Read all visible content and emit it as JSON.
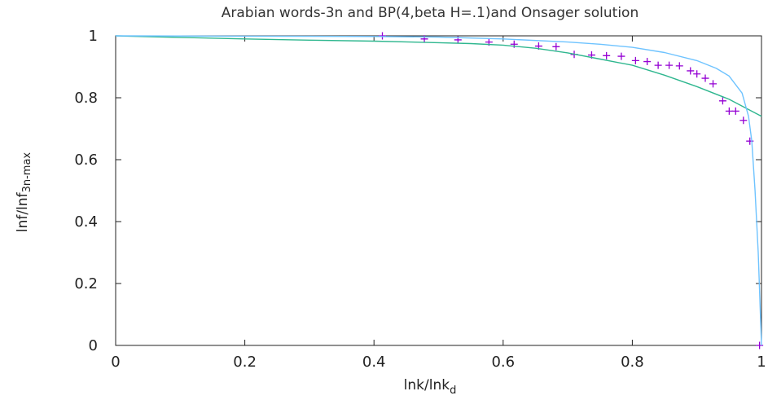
{
  "chart_data": {
    "type": "line",
    "title": "Arabian words-3n and BP(4,beta H=.1)and Onsager solution",
    "xlabel": {
      "main": "lnk/lnk",
      "sub": "d"
    },
    "ylabel": {
      "main": "lnf/lnf",
      "sub": "3n-max"
    },
    "xlim": [
      0,
      1
    ],
    "ylim": [
      0,
      1
    ],
    "xticks": [
      "0",
      "0.2",
      "0.4",
      "0.6",
      "0.8",
      "1"
    ],
    "yticks": [
      "0",
      "0.2",
      "0.4",
      "0.6",
      "0.8",
      "1"
    ],
    "grid": false,
    "legend": "none",
    "series": [
      {
        "kind": "markers",
        "marker": "plus",
        "color": "#9400d3",
        "points": [
          [
            0.413,
            1.0
          ],
          [
            0.478,
            0.99
          ],
          [
            0.53,
            0.987
          ],
          [
            0.578,
            0.98
          ],
          [
            0.617,
            0.973
          ],
          [
            0.655,
            0.967
          ],
          [
            0.682,
            0.965
          ],
          [
            0.71,
            0.94
          ],
          [
            0.737,
            0.938
          ],
          [
            0.76,
            0.936
          ],
          [
            0.783,
            0.934
          ],
          [
            0.805,
            0.92
          ],
          [
            0.823,
            0.917
          ],
          [
            0.84,
            0.905
          ],
          [
            0.857,
            0.905
          ],
          [
            0.873,
            0.903
          ],
          [
            0.89,
            0.887
          ],
          [
            0.9,
            0.877
          ],
          [
            0.913,
            0.863
          ],
          [
            0.925,
            0.845
          ],
          [
            0.94,
            0.79
          ],
          [
            0.95,
            0.757
          ],
          [
            0.96,
            0.757
          ],
          [
            0.972,
            0.727
          ],
          [
            0.982,
            0.66
          ],
          [
            0.997,
            0.0
          ]
        ]
      },
      {
        "kind": "line",
        "color": "#2fb78f",
        "points": [
          [
            0,
            1.0
          ],
          [
            0.1,
            0.995
          ],
          [
            0.2,
            0.99
          ],
          [
            0.3,
            0.986
          ],
          [
            0.4,
            0.983
          ],
          [
            0.5,
            0.978
          ],
          [
            0.55,
            0.975
          ],
          [
            0.6,
            0.97
          ],
          [
            0.65,
            0.96
          ],
          [
            0.7,
            0.945
          ],
          [
            0.75,
            0.925
          ],
          [
            0.8,
            0.905
          ],
          [
            0.85,
            0.873
          ],
          [
            0.9,
            0.836
          ],
          [
            0.95,
            0.795
          ],
          [
            1.0,
            0.74
          ]
        ]
      },
      {
        "kind": "line",
        "color": "#6ec3ff",
        "points": [
          [
            0,
            1.0
          ],
          [
            0.2,
            0.999
          ],
          [
            0.4,
            0.998
          ],
          [
            0.5,
            0.996
          ],
          [
            0.6,
            0.99
          ],
          [
            0.7,
            0.98
          ],
          [
            0.75,
            0.973
          ],
          [
            0.8,
            0.963
          ],
          [
            0.85,
            0.946
          ],
          [
            0.9,
            0.92
          ],
          [
            0.93,
            0.895
          ],
          [
            0.95,
            0.87
          ],
          [
            0.97,
            0.815
          ],
          [
            0.98,
            0.74
          ],
          [
            0.985,
            0.66
          ],
          [
            0.99,
            0.5
          ],
          [
            0.995,
            0.3
          ],
          [
            1.0,
            0.0
          ]
        ]
      }
    ]
  }
}
